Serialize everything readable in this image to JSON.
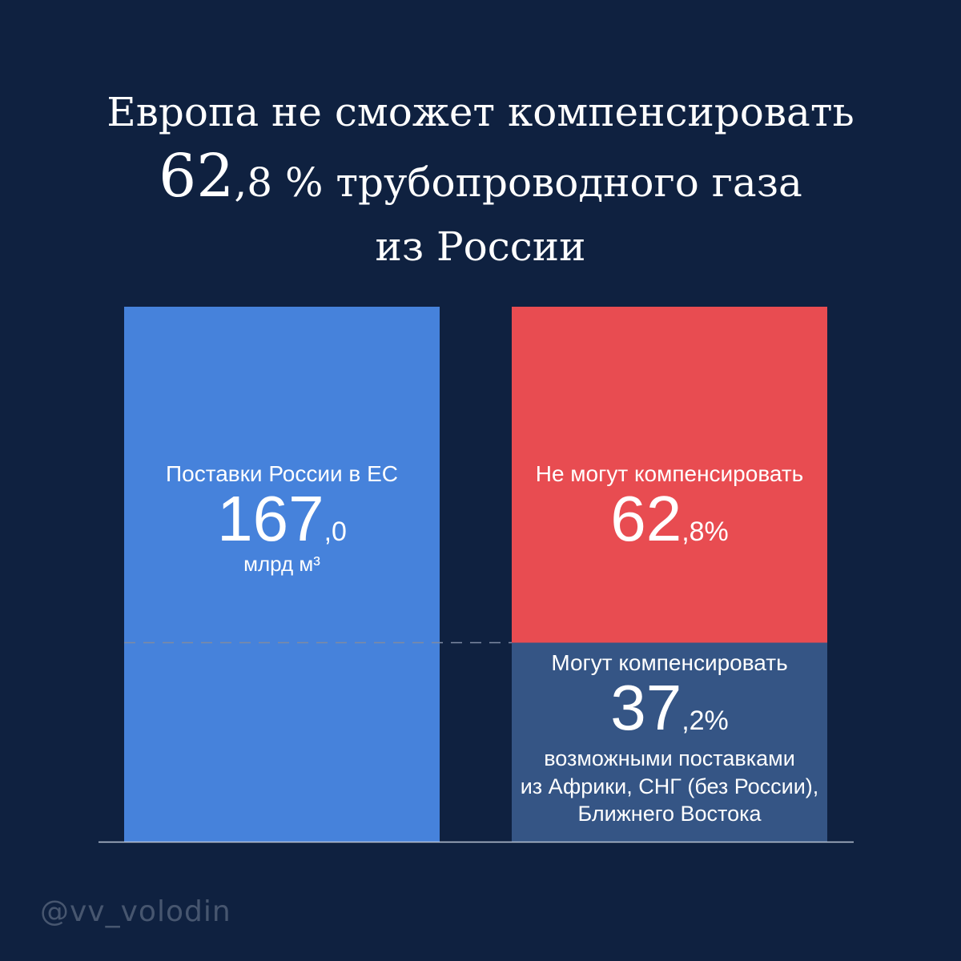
{
  "title": {
    "line1": "Европа не сможет компенсировать",
    "line2_int": "62",
    "line2_rest": ",8 % трубопроводного газа",
    "line3": "из России"
  },
  "watermark": "@vv_volodin",
  "colors": {
    "background": "#0f2140",
    "blue": "#4682db",
    "red": "#e84c51",
    "navy": "#355585",
    "divider": "#7f8ba3"
  },
  "chart_data": {
    "type": "bar",
    "stacked": true,
    "ylim": [
      0,
      100
    ],
    "bars": [
      {
        "segments": [
          {
            "value": 100,
            "color": "#4682db",
            "label": "Поставки России в ЕС",
            "value_int": "167",
            "value_frac": ",0",
            "unit": "млрд м³"
          }
        ]
      },
      {
        "segments": [
          {
            "value": 37.2,
            "color": "#355585",
            "label": "Могут компенсировать",
            "value_int": "37",
            "value_frac": ",2%",
            "note": [
              "возможными поставками",
              "из Африки, СНГ (без России),",
              "Ближнего Востока"
            ]
          },
          {
            "value": 62.8,
            "color": "#e84c51",
            "label": "Не могут компенсировать",
            "value_int": "62",
            "value_frac": ",8%"
          }
        ]
      }
    ]
  }
}
